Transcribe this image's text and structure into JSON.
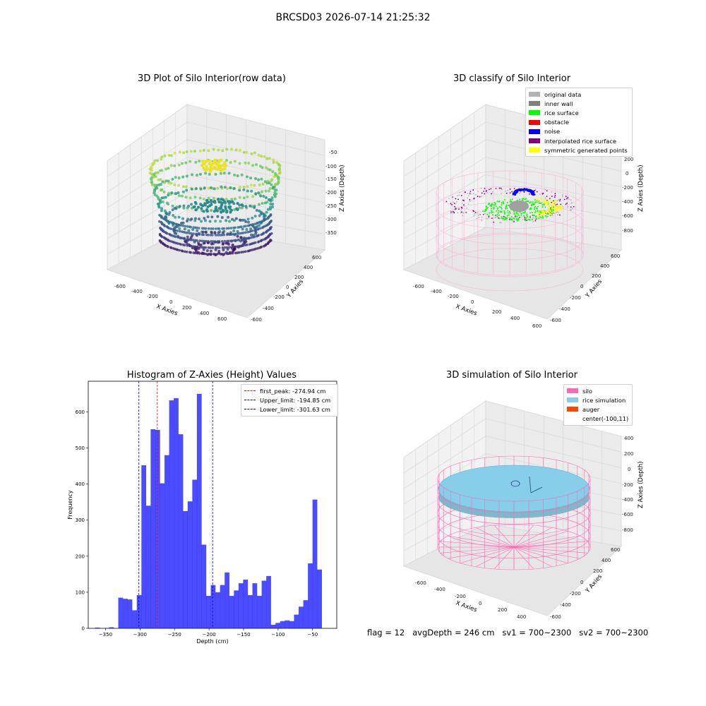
{
  "suptitle": "BRCSD03 2026-07-14 21:25:32",
  "footer": "flag = 12   avgDepth = 246 cm   sv1 = 700~2300   sv2 = 700~2300",
  "chart_data": [
    {
      "type": "scatter",
      "title": "3D Plot of Silo Interior(row data)",
      "xlabel": "X Axies",
      "ylabel": "Y Axies",
      "zlabel": "Z Axies (Depth)",
      "x_ticks": [
        "-600",
        "-400",
        "-200",
        "0",
        "200",
        "400",
        "600"
      ],
      "y_ticks": [
        "-600",
        "-400",
        "-200",
        "0",
        "200",
        "400",
        "600"
      ],
      "z_ticks": [
        "-50",
        "-100",
        "-150",
        "-200",
        "-250",
        "-300",
        "-350"
      ],
      "colormap": "viridis"
    },
    {
      "type": "scatter",
      "title": "3D classify of Silo Interior",
      "xlabel": "X Axies",
      "ylabel": "Y Axies",
      "zlabel": "Z Axies (Depth)",
      "x_ticks": [
        "-600",
        "-400",
        "-200",
        "0",
        "200",
        "400",
        "600"
      ],
      "y_ticks": [
        "-600",
        "-400",
        "-200",
        "0",
        "200",
        "400",
        "600"
      ],
      "z_ticks": [
        "200",
        "0",
        "-200",
        "-400",
        "-600",
        "-800"
      ],
      "legend": [
        {
          "label": "original data",
          "color": "#b3b3b3"
        },
        {
          "label": "inner wall",
          "color": "#808080"
        },
        {
          "label": "rice surface",
          "color": "#00ff00"
        },
        {
          "label": "obstacle",
          "color": "#ff0000"
        },
        {
          "label": "noise",
          "color": "#0000ff"
        },
        {
          "label": "interpolated rice surface",
          "color": "#800080"
        },
        {
          "label": "symmetric generated points",
          "color": "#ffff00"
        }
      ]
    },
    {
      "type": "bar",
      "title": "Histogram of Z-Axies (Height) Values",
      "xlabel": "Depth (cm)",
      "ylabel": "Frequency",
      "xlim": [
        -375,
        -15
      ],
      "ylim": [
        0,
        685
      ],
      "x_ticks": [
        -350,
        -300,
        -250,
        -200,
        -150,
        -100,
        -50
      ],
      "y_ticks": [
        0,
        100,
        200,
        300,
        400,
        500,
        600
      ],
      "bin_start": -365,
      "bin_width": 6.7,
      "values": [
        2,
        0,
        1,
        3,
        0,
        85,
        82,
        80,
        50,
        92,
        452,
        340,
        552,
        550,
        402,
        480,
        632,
        638,
        538,
        325,
        352,
        412,
        650,
        232,
        90,
        120,
        100,
        120,
        155,
        90,
        105,
        125,
        135,
        92,
        125,
        90,
        132,
        145,
        10,
        15,
        20,
        22,
        20,
        38,
        60,
        78,
        180,
        357,
        163
      ],
      "color": "#0000ff",
      "vlines": [
        {
          "label": "first_peak: -274.94 cm",
          "x": -274.94,
          "color": "#ff0000"
        },
        {
          "label": "Upper_limit: -194.85 cm",
          "x": -194.85,
          "color": "#0000ff"
        },
        {
          "label": "Lower_limit: -301.63 cm",
          "x": -301.63,
          "color": "#00008b"
        }
      ]
    },
    {
      "type": "scatter",
      "title": "3D simulation of Silo Interior",
      "xlabel": "X Axies",
      "ylabel": "Y Axies",
      "zlabel": "Z Axies (Depth)",
      "x_ticks": [
        "-600",
        "-400",
        "-200",
        "0",
        "200",
        "400"
      ],
      "y_ticks": [
        "-600",
        "-400",
        "-200",
        "0",
        "200",
        "400",
        "600"
      ],
      "z_ticks": [
        "400",
        "200",
        "0",
        "-200",
        "-400",
        "-600",
        "-800"
      ],
      "legend": [
        {
          "label": "silo",
          "color": "#ff69b4"
        },
        {
          "label": "rice simulation",
          "color": "#87ceeb"
        },
        {
          "label": "auger",
          "color": "#ff4500"
        },
        {
          "label": "center(-100,11)",
          "color": ""
        }
      ]
    }
  ]
}
